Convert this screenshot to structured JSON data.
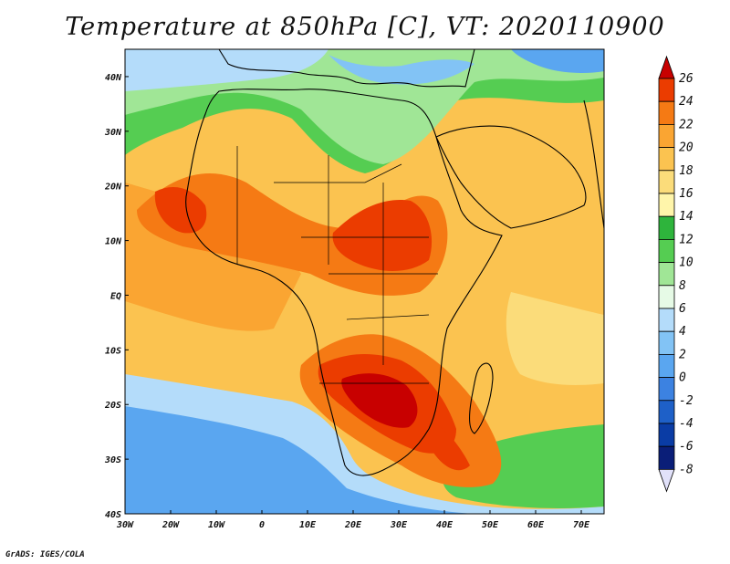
{
  "title": "Temperature at 850hPa [C], VT: 2020110900",
  "credit": "GrADS: IGES/COLA",
  "map": {
    "lon_range": [
      -30,
      75
    ],
    "lat_range": [
      -40,
      45
    ],
    "lon_ticks": [
      {
        "value": -30,
        "label": "30W"
      },
      {
        "value": -20,
        "label": "20W"
      },
      {
        "value": -10,
        "label": "10W"
      },
      {
        "value": 0,
        "label": "0"
      },
      {
        "value": 10,
        "label": "10E"
      },
      {
        "value": 20,
        "label": "20E"
      },
      {
        "value": 30,
        "label": "30E"
      },
      {
        "value": 40,
        "label": "40E"
      },
      {
        "value": 50,
        "label": "50E"
      },
      {
        "value": 60,
        "label": "60E"
      },
      {
        "value": 70,
        "label": "70E"
      }
    ],
    "lat_ticks": [
      {
        "value": 40,
        "label": "40N"
      },
      {
        "value": 30,
        "label": "30N"
      },
      {
        "value": 20,
        "label": "20N"
      },
      {
        "value": 10,
        "label": "10N"
      },
      {
        "value": 0,
        "label": "EQ"
      },
      {
        "value": -10,
        "label": "10S"
      },
      {
        "value": -20,
        "label": "20S"
      },
      {
        "value": -30,
        "label": "30S"
      },
      {
        "value": -40,
        "label": "40S"
      }
    ]
  },
  "colorbar": {
    "labels": [
      "26",
      "24",
      "22",
      "20",
      "18",
      "16",
      "14",
      "12",
      "10",
      "8",
      "6",
      "4",
      "2",
      "0",
      "-2",
      "-4",
      "-6",
      "-8"
    ],
    "colors": [
      "#c80000",
      "#eb3c00",
      "#f57a14",
      "#faa532",
      "#fbc350",
      "#fbdc7a",
      "#fff5aa",
      "#2eb43c",
      "#55cd52",
      "#a0e696",
      "#e6fae6",
      "#b4dcfa",
      "#82c3f5",
      "#5aa6f0",
      "#3c82e1",
      "#1e60c8",
      "#0a3ca5",
      "#0a1e78",
      "#e1e1fa"
    ]
  },
  "palette": {
    "deep_red": "#c80000",
    "red": "#eb3c00",
    "orange": "#f57a14",
    "light_orange": "#faa532",
    "amber": "#fbc350",
    "pale_yellow": "#fbdc7a",
    "light_green": "#a0e696",
    "green": "#55cd52",
    "pale_blue": "#b4dcfa",
    "blue": "#82c3f5",
    "mid_blue": "#5aa6f0"
  }
}
